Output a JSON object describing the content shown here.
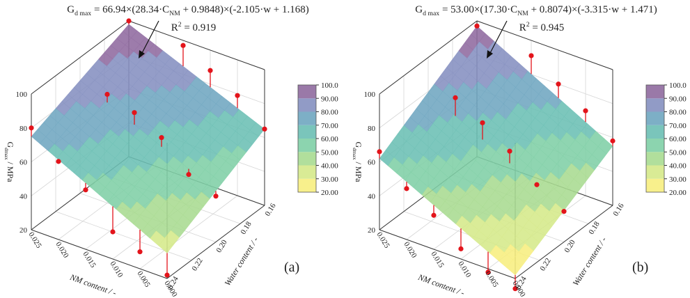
{
  "chart_data": [
    {
      "type": "surface3d",
      "panel_label": "(a)",
      "equation": [
        {
          "text": "G"
        },
        {
          "text": "d max",
          "sub": true
        },
        {
          "text": " = 66.94×(28.34·C"
        },
        {
          "text": "NM",
          "sub": true
        },
        {
          "text": " + 0.9848)×(-2.105·w + 1.168)"
        }
      ],
      "r_squared": [
        {
          "text": "R"
        },
        {
          "text": "2",
          "sup": true
        },
        {
          "text": " = 0.919"
        }
      ],
      "x_label": "NM content / -",
      "y_label": "Water content / -",
      "z_label": [
        {
          "text": "G"
        },
        {
          "text": "dmax",
          "sub": true
        },
        {
          "text": " / MPa"
        }
      ],
      "xlim": [
        0,
        0.025
      ],
      "ylim": [
        0.16,
        0.24
      ],
      "zlim": [
        20,
        100
      ],
      "xticks": [
        {
          "value": 0,
          "label": "0.000"
        },
        {
          "value": 0.005,
          "label": "0.005"
        },
        {
          "value": 0.01,
          "label": "0.010"
        },
        {
          "value": 0.015,
          "label": "0.015"
        },
        {
          "value": 0.02,
          "label": "0.020"
        },
        {
          "value": 0.025,
          "label": "0.025"
        }
      ],
      "yticks": [
        0.16,
        0.18,
        {
          "value": 0.2,
          "label": "0.20"
        },
        0.22,
        0.24
      ],
      "zticks": [
        20,
        40,
        60,
        80,
        100
      ],
      "grid": true,
      "surface": {
        "z": [
          [
            65,
            98
          ],
          [
            35,
            75
          ]
        ]
      },
      "points": {
        "color": "#e3141b",
        "x": [
          0.025,
          0.02,
          0.015,
          0.01,
          0.005,
          0,
          0.02,
          0.015,
          0.01,
          0.005,
          0,
          0.025,
          0.015,
          0.01,
          0.005,
          0
        ],
        "y": [
          0.24,
          0.24,
          0.24,
          0.24,
          0.24,
          0.24,
          0.2,
          0.2,
          0.2,
          0.2,
          0.2,
          0.16,
          0.16,
          0.16,
          0.16,
          0.16
        ],
        "z": [
          80,
          66,
          55,
          36,
          30,
          22,
          84,
          79,
          70,
          54,
          47,
          100,
          97,
          88,
          79,
          65
        ]
      },
      "colorbar": {
        "colors": [
          "#f7ee7f",
          "#d5e98a",
          "#a8db91",
          "#7fcfa6",
          "#6bbfb4",
          "#6fa6c0",
          "#8590c0",
          "#8f6a9f"
        ],
        "ticks": [
          {
            "value": 20,
            "label": "20.00"
          },
          {
            "value": 30,
            "label": "30.00"
          },
          {
            "value": 40,
            "label": "40.00"
          },
          {
            "value": 50,
            "label": "50.00"
          },
          {
            "value": 60,
            "label": "60.00"
          },
          {
            "value": 70,
            "label": "70.00"
          },
          {
            "value": 80,
            "label": "80.00"
          },
          {
            "value": 90,
            "label": "90.00"
          },
          {
            "value": 100,
            "label": "100.0"
          }
        ]
      }
    },
    {
      "type": "surface3d",
      "panel_label": "(b)",
      "equation": [
        {
          "text": "G"
        },
        {
          "text": "d max",
          "sub": true
        },
        {
          "text": " = 53.00×(17.30·C"
        },
        {
          "text": "NM",
          "sub": true
        },
        {
          "text": " + 0.8074)×(-3.315·w + 1.471)"
        }
      ],
      "r_squared": [
        {
          "text": "R"
        },
        {
          "text": "2",
          "sup": true
        },
        {
          "text": " = 0.945"
        }
      ],
      "x_label": "NM content / -",
      "y_label": "Water content / -",
      "z_label": [
        {
          "text": "G"
        },
        {
          "text": "dmax",
          "sub": true
        },
        {
          "text": " / MPa"
        }
      ],
      "xlim": [
        0,
        0.025
      ],
      "ylim": [
        0.16,
        0.24
      ],
      "zlim": [
        20,
        100
      ],
      "xticks": [
        {
          "value": 0,
          "label": "0.000"
        },
        {
          "value": 0.005,
          "label": "0.005"
        },
        {
          "value": 0.01,
          "label": "0.010"
        },
        {
          "value": 0.015,
          "label": "0.015"
        },
        {
          "value": 0.02,
          "label": "0.020"
        },
        {
          "value": 0.025,
          "label": "0.025"
        }
      ],
      "yticks": [
        0.16,
        0.18,
        {
          "value": 0.2,
          "label": "0.20"
        },
        0.22,
        0.24
      ],
      "zticks": [
        20,
        40,
        60,
        80,
        100
      ],
      "grid": true,
      "surface": {
        "z": [
          [
            55,
            97
          ],
          [
            22,
            62
          ]
        ]
      },
      "points": {
        "color": "#e3141b",
        "x": [
          0.025,
          0.02,
          0.015,
          0.01,
          0.005,
          0,
          0.02,
          0.015,
          0.01,
          0.005,
          0,
          0.025,
          0.015,
          0.01,
          0.005,
          0
        ],
        "y": [
          0.24,
          0.24,
          0.24,
          0.24,
          0.24,
          0.24,
          0.2,
          0.2,
          0.2,
          0.2,
          0.2,
          0.16,
          0.16,
          0.16,
          0.16,
          0.16
        ],
        "z": [
          66,
          50,
          40,
          26,
          18,
          14,
          82,
          73,
          62,
          48,
          38,
          97,
          91,
          80,
          70,
          58
        ]
      },
      "colorbar": {
        "colors": [
          "#f7ee7f",
          "#d5e98a",
          "#a8db91",
          "#7fcfa6",
          "#6bbfb4",
          "#6fa6c0",
          "#8590c0",
          "#8f6a9f"
        ],
        "ticks": [
          {
            "value": 20,
            "label": "20.00"
          },
          {
            "value": 30,
            "label": "30.00"
          },
          {
            "value": 40,
            "label": "40.00"
          },
          {
            "value": 50,
            "label": "50.00"
          },
          {
            "value": 60,
            "label": "60.00"
          },
          {
            "value": 70,
            "label": "70.00"
          },
          {
            "value": 80,
            "label": "80.00"
          },
          {
            "value": 90,
            "label": "90.00"
          },
          {
            "value": 100,
            "label": "100.0"
          }
        ]
      }
    }
  ]
}
